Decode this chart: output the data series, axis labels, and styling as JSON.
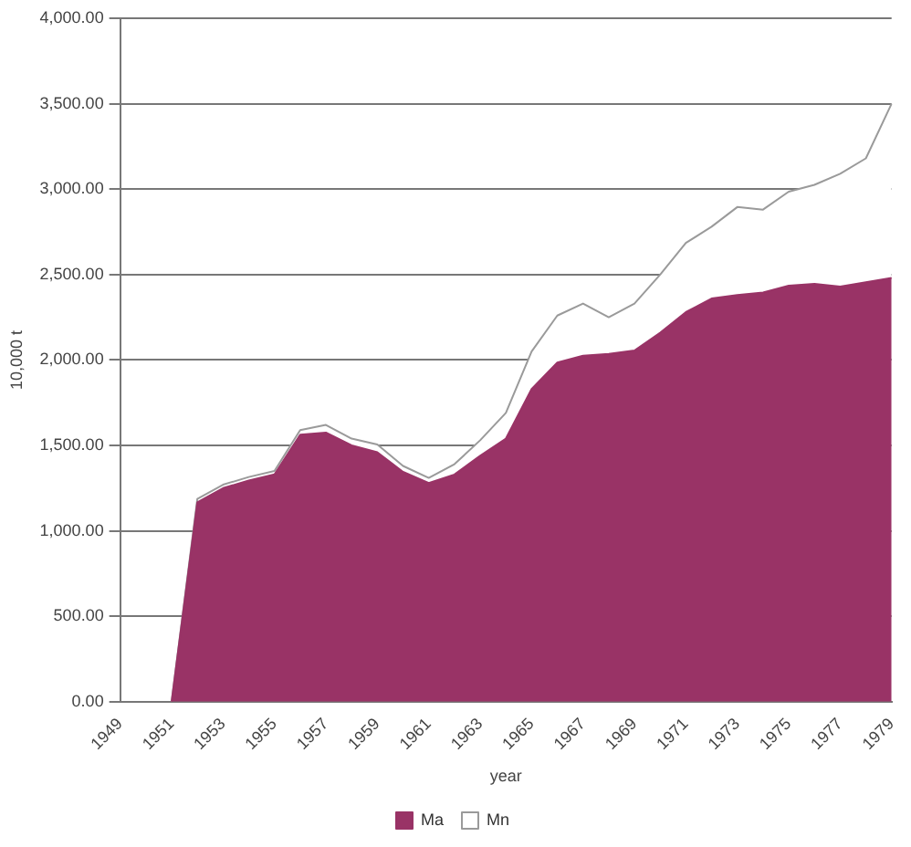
{
  "chart_data": {
    "type": "area",
    "xlabel": "year",
    "ylabel": "10,000 t",
    "categories": [
      "1949",
      null,
      "1951",
      null,
      "1953",
      null,
      "1955",
      null,
      "1957",
      null,
      "1959",
      null,
      "1961",
      null,
      "1963",
      null,
      "1965",
      null,
      "1967",
      null,
      "1969",
      null,
      "1971",
      null,
      "1973",
      null,
      "1975",
      null,
      "1977",
      null,
      "1979"
    ],
    "series": [
      {
        "name": "Ma",
        "color": "#993366",
        "values": [
          null,
          null,
          0,
          1167,
          1250,
          1295,
          1330,
          1563,
          1575,
          1500,
          1460,
          1345,
          1280,
          1330,
          1440,
          1540,
          1830,
          1985,
          2025,
          2035,
          2055,
          2160,
          2280,
          2360,
          2380,
          2395,
          2435,
          2445,
          2430,
          2455,
          2480
        ]
      },
      {
        "name": "Mn",
        "color": "#ffffff",
        "values": [
          null,
          null,
          0,
          20,
          20,
          20,
          20,
          27,
          45,
          40,
          45,
          35,
          30,
          60,
          90,
          150,
          220,
          275,
          305,
          215,
          275,
          340,
          405,
          420,
          515,
          485,
          550,
          580,
          660,
          725,
          1020
        ]
      }
    ],
    "stacked": true,
    "ylim": [
      0,
      4000
    ],
    "yticks": [
      {
        "value": 0,
        "label": "0.00"
      },
      {
        "value": 500,
        "label": "500.00"
      },
      {
        "value": 1000,
        "label": "1,000.00"
      },
      {
        "value": 1500,
        "label": "1,500.00"
      },
      {
        "value": 2000,
        "label": "2,000.00"
      },
      {
        "value": 2500,
        "label": "2,500.00"
      },
      {
        "value": 3000,
        "label": "3,000.00"
      },
      {
        "value": 3500,
        "label": "3,500.00"
      },
      {
        "value": 4000,
        "label": "4,000.00"
      }
    ],
    "grid": "y",
    "legend": "bottom"
  }
}
